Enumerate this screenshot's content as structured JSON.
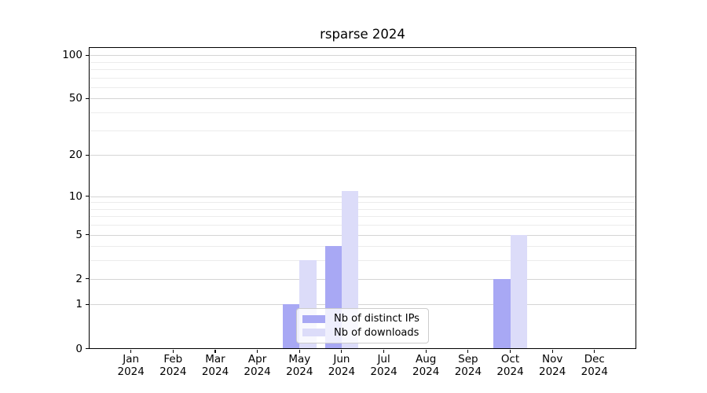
{
  "chart_data": {
    "type": "bar",
    "title": "rsparse 2024",
    "categories": [
      "Jan",
      "Feb",
      "Mar",
      "Apr",
      "May",
      "Jun",
      "Jul",
      "Aug",
      "Sep",
      "Oct",
      "Nov",
      "Dec"
    ],
    "year": "2024",
    "series": [
      {
        "name": "Nb of distinct IPs",
        "color": "#a8a8f4",
        "values": [
          0,
          0,
          0,
          0,
          1,
          4,
          0,
          0,
          0,
          2,
          0,
          0
        ]
      },
      {
        "name": "Nb of downloads",
        "color": "#dcdcf9",
        "values": [
          0,
          0,
          0,
          0,
          3,
          11,
          0,
          0,
          0,
          5,
          0,
          0
        ]
      }
    ],
    "xlabel": "",
    "ylabel": "",
    "y_axis": {
      "scale": "log1p",
      "major_ticks": [
        0,
        1,
        2,
        5,
        10,
        20,
        50,
        100
      ],
      "minor_ticks": [
        3,
        4,
        6,
        7,
        8,
        9,
        30,
        40,
        60,
        70,
        80,
        90
      ],
      "top_value": 113.5
    },
    "grid": {
      "major_color": "#d5d5d5",
      "minor_color": "#ececec"
    },
    "legend_position": "lower center",
    "axis_color": "#000000"
  }
}
